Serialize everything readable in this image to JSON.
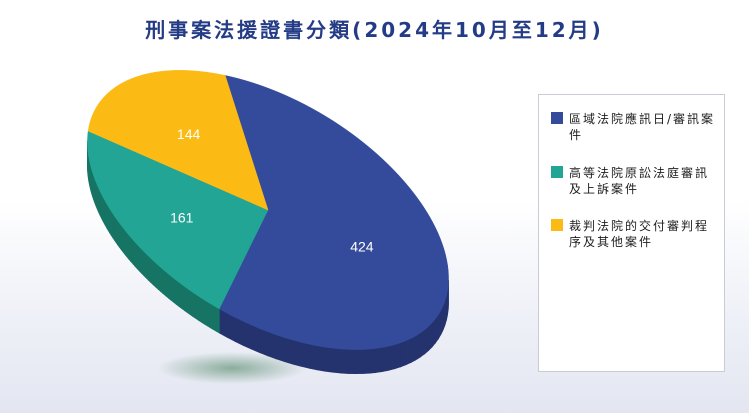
{
  "chart_data": {
    "type": "pie",
    "title": "刑事案法援證書分類(2024年10月至12月)",
    "slices": [
      {
        "label": "區域法院應訊日/審訊案件",
        "value": 424,
        "color": "#344a9b",
        "side_color": "#24336e"
      },
      {
        "label": "高等法院原訟法庭審訊及上訴案件",
        "value": 161,
        "color": "#22a594",
        "side_color": "#177464"
      },
      {
        "label": "裁判法院的交付審判程序及其他案件",
        "value": 144,
        "color": "#fcba14",
        "side_color": "#b8870e"
      }
    ],
    "legend_position": "right"
  }
}
